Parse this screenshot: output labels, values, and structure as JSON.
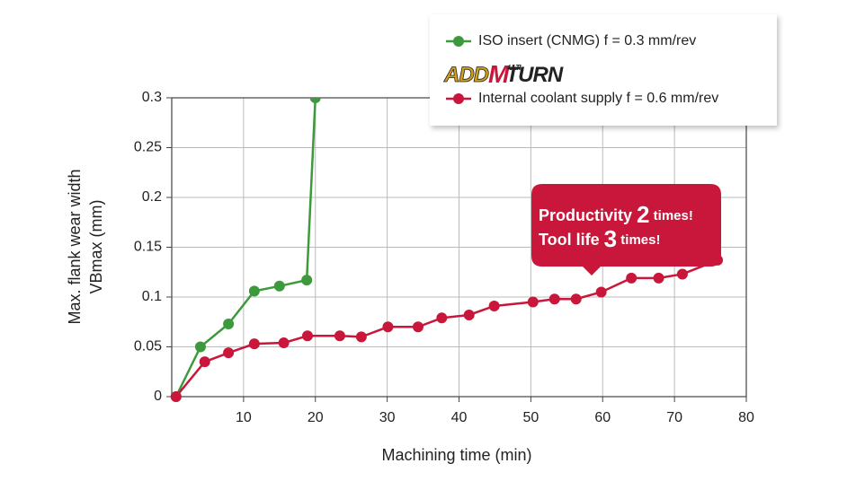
{
  "chart_data": {
    "type": "line",
    "y_label": [
      "Max. flank wear width",
      "VBmax (mm)"
    ],
    "x_label": "Machining time (min)",
    "xlim": [
      0,
      80
    ],
    "xticks": [
      10,
      20,
      30,
      40,
      50,
      60,
      70,
      80
    ],
    "ylim": [
      0,
      0.3
    ],
    "yticks": [
      0,
      0.05,
      0.1,
      0.15,
      0.2,
      0.25,
      0.3
    ],
    "grid": true,
    "legend_logo": [
      "ADD",
      "M",
      "ULTI",
      "TURN"
    ],
    "series": [
      {
        "name": "ISO insert (CNMG) f = 0.3 mm/rev",
        "color": "#3d9a3c",
        "x": [
          0.6,
          4,
          7.9,
          11.5,
          15,
          18.8,
          20
        ],
        "values": [
          0,
          0.05,
          0.073,
          0.106,
          0.111,
          0.117,
          0.3
        ]
      },
      {
        "name": "Internal coolant supply f = 0.6 mm/rev",
        "color": "#c8173a",
        "x": [
          0.6,
          4.6,
          7.9,
          11.5,
          15.6,
          18.9,
          23.4,
          26.4,
          30.1,
          34.3,
          37.6,
          41.4,
          44.9,
          50.3,
          53.3,
          56.3,
          59.8,
          64,
          67.8,
          71.1,
          76
        ],
        "values": [
          0,
          0.035,
          0.044,
          0.053,
          0.054,
          0.061,
          0.061,
          0.06,
          0.07,
          0.07,
          0.079,
          0.082,
          0.091,
          0.095,
          0.098,
          0.098,
          0.105,
          0.119,
          0.119,
          0.123,
          0.137
        ]
      }
    ],
    "annotation": [
      [
        "Productivity ",
        "2",
        " times!"
      ],
      [
        "Tool life ",
        "3",
        " times!"
      ]
    ]
  }
}
